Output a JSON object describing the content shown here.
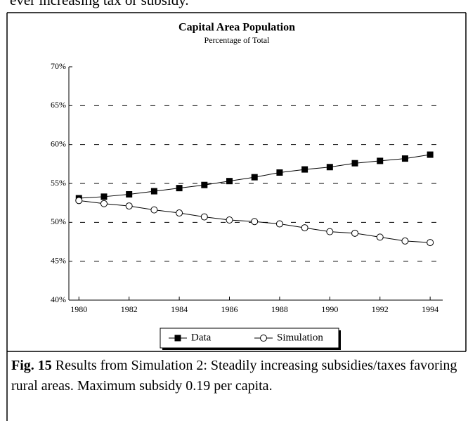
{
  "preceding_text": "ever increasing tax or subsidy.",
  "chart_data": {
    "type": "line",
    "title": "Capital Area Population",
    "subtitle": "Percentage of Total",
    "x": [
      1980,
      1981,
      1982,
      1983,
      1984,
      1985,
      1986,
      1987,
      1988,
      1989,
      1990,
      1991,
      1992,
      1993,
      1994
    ],
    "series": [
      {
        "name": "Data",
        "color": "#000000",
        "marker": "square",
        "values": [
          53.1,
          53.3,
          53.6,
          54.0,
          54.4,
          54.8,
          55.3,
          55.8,
          56.4,
          56.8,
          57.1,
          57.6,
          57.9,
          58.2,
          58.7
        ]
      },
      {
        "name": "Simulation",
        "color": "#000000",
        "marker": "circle",
        "values": [
          52.8,
          52.4,
          52.1,
          51.6,
          51.2,
          50.7,
          50.3,
          50.1,
          49.8,
          49.3,
          48.8,
          48.6,
          48.1,
          47.6,
          47.4
        ]
      }
    ],
    "xlim": [
      1979.6,
      1994.5
    ],
    "xticks": [
      1980,
      1982,
      1984,
      1986,
      1988,
      1990,
      1992,
      1994
    ],
    "ylim": [
      40,
      70
    ],
    "yticks": [
      {
        "value": 40,
        "label": "40%"
      },
      {
        "value": 45,
        "label": "45%"
      },
      {
        "value": 50,
        "label": "50%"
      },
      {
        "value": 55,
        "label": "55%"
      },
      {
        "value": 60,
        "label": "60%"
      },
      {
        "value": 65,
        "label": "65%"
      },
      {
        "value": 70,
        "label": "70%"
      }
    ],
    "grid": true,
    "legend": "bottom"
  },
  "caption": {
    "label": "Fig. 15",
    "text": " Results from Simulation 2: Steadily increasing subsidies/taxes favoring rural areas. Maximum subsidy 0.19 per capita."
  }
}
